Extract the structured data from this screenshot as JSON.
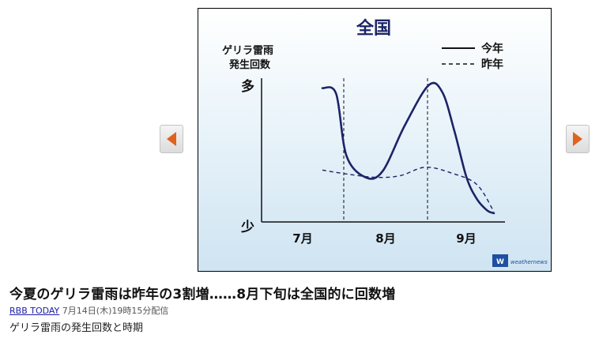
{
  "figure": {
    "chart_data": {
      "type": "line",
      "title": "全国",
      "ylabel": "ゲリラ雷雨\n発生回数",
      "ytick_high": "多",
      "ytick_low": "少",
      "x_categories": [
        "7月",
        "8月",
        "9月"
      ],
      "series": [
        {
          "name": "今年",
          "style": "solid",
          "x": [
            0.0,
            0.08,
            0.14,
            0.25,
            0.35,
            0.48,
            0.62,
            0.7,
            0.77,
            0.84,
            0.9,
            0.96,
            1.0
          ],
          "values": [
            0.92,
            0.88,
            0.45,
            0.3,
            0.34,
            0.66,
            0.94,
            0.89,
            0.62,
            0.3,
            0.15,
            0.07,
            0.05
          ]
        },
        {
          "name": "昨年",
          "style": "dashed",
          "x": [
            0.0,
            0.1,
            0.3,
            0.45,
            0.6,
            0.75,
            0.9,
            1.0
          ],
          "values": [
            0.35,
            0.33,
            0.3,
            0.31,
            0.37,
            0.33,
            0.25,
            0.06
          ]
        }
      ],
      "ylim": [
        0,
        1
      ],
      "xlim": [
        0,
        1
      ],
      "grid": false,
      "legend_position": "top-right"
    },
    "brand_text": "weathernews"
  },
  "article": {
    "title": "今夏のゲリラ雷雨は昨年の3割増……8月下旬は全国的に回数増",
    "source": "RBB TODAY",
    "date": "7月14日(木)19時15分配信",
    "caption": "ゲリラ雷雨の発生回数と時期"
  },
  "colors": {
    "series_line": "#1b2466",
    "arrow_orange": "#e0621e",
    "logo_blue": "#1f4fa0",
    "link": "#1a1aa6"
  },
  "icons": {
    "prev": "left-arrow-icon",
    "next": "right-arrow-icon",
    "logo": "weathernews-logo-icon"
  }
}
